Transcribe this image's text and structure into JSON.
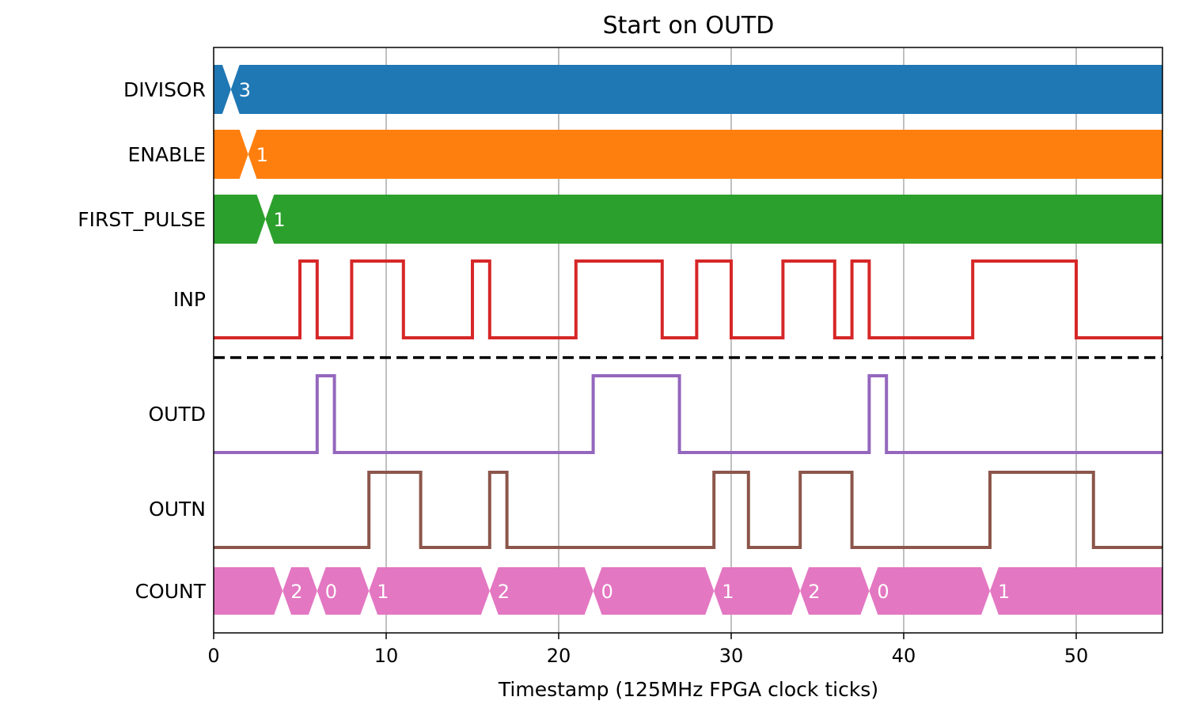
{
  "chart_data": {
    "type": "timing",
    "title": "Start on OUTD",
    "xlabel": "Timestamp (125MHz FPGA clock ticks)",
    "xlim": [
      0,
      55
    ],
    "xticks": [
      0,
      10,
      20,
      30,
      40,
      50
    ],
    "xtick_labels": [
      "0",
      "10",
      "20",
      "30",
      "40",
      "50"
    ],
    "grid": "vertical",
    "separator": "dashed line between INP and OUTD",
    "signals": [
      {
        "name": "DIVISOR",
        "kind": "bus",
        "color": "#1f77b4",
        "changes": [
          {
            "t": 1,
            "value": "3"
          }
        ]
      },
      {
        "name": "ENABLE",
        "kind": "bus",
        "color": "#ff7f0e",
        "changes": [
          {
            "t": 2,
            "value": "1"
          }
        ]
      },
      {
        "name": "FIRST_PULSE",
        "kind": "bus",
        "color": "#2ca02c",
        "changes": [
          {
            "t": 3,
            "value": "1"
          }
        ]
      },
      {
        "name": "INP",
        "kind": "bit",
        "color": "#d62728",
        "pulses": [
          [
            5,
            6
          ],
          [
            8,
            11
          ],
          [
            15,
            16
          ],
          [
            21,
            26
          ],
          [
            28,
            30
          ],
          [
            33,
            36
          ],
          [
            37,
            38
          ],
          [
            44,
            50
          ]
        ]
      },
      {
        "name": "OUTD",
        "kind": "bit",
        "color": "#9467bd",
        "pulses": [
          [
            6,
            7
          ],
          [
            22,
            27
          ],
          [
            38,
            39
          ]
        ]
      },
      {
        "name": "OUTN",
        "kind": "bit",
        "color": "#8c564b",
        "pulses": [
          [
            9,
            12
          ],
          [
            16,
            17
          ],
          [
            29,
            31
          ],
          [
            34,
            37
          ],
          [
            45,
            51
          ]
        ]
      },
      {
        "name": "COUNT",
        "kind": "bus",
        "color": "#e377c2",
        "changes": [
          {
            "t": 4,
            "value": "2"
          },
          {
            "t": 6,
            "value": "0"
          },
          {
            "t": 9,
            "value": "1"
          },
          {
            "t": 16,
            "value": "2"
          },
          {
            "t": 22,
            "value": "0"
          },
          {
            "t": 29,
            "value": "1"
          },
          {
            "t": 34,
            "value": "2"
          },
          {
            "t": 38,
            "value": "0"
          },
          {
            "t": 45,
            "value": "1"
          }
        ]
      }
    ]
  }
}
